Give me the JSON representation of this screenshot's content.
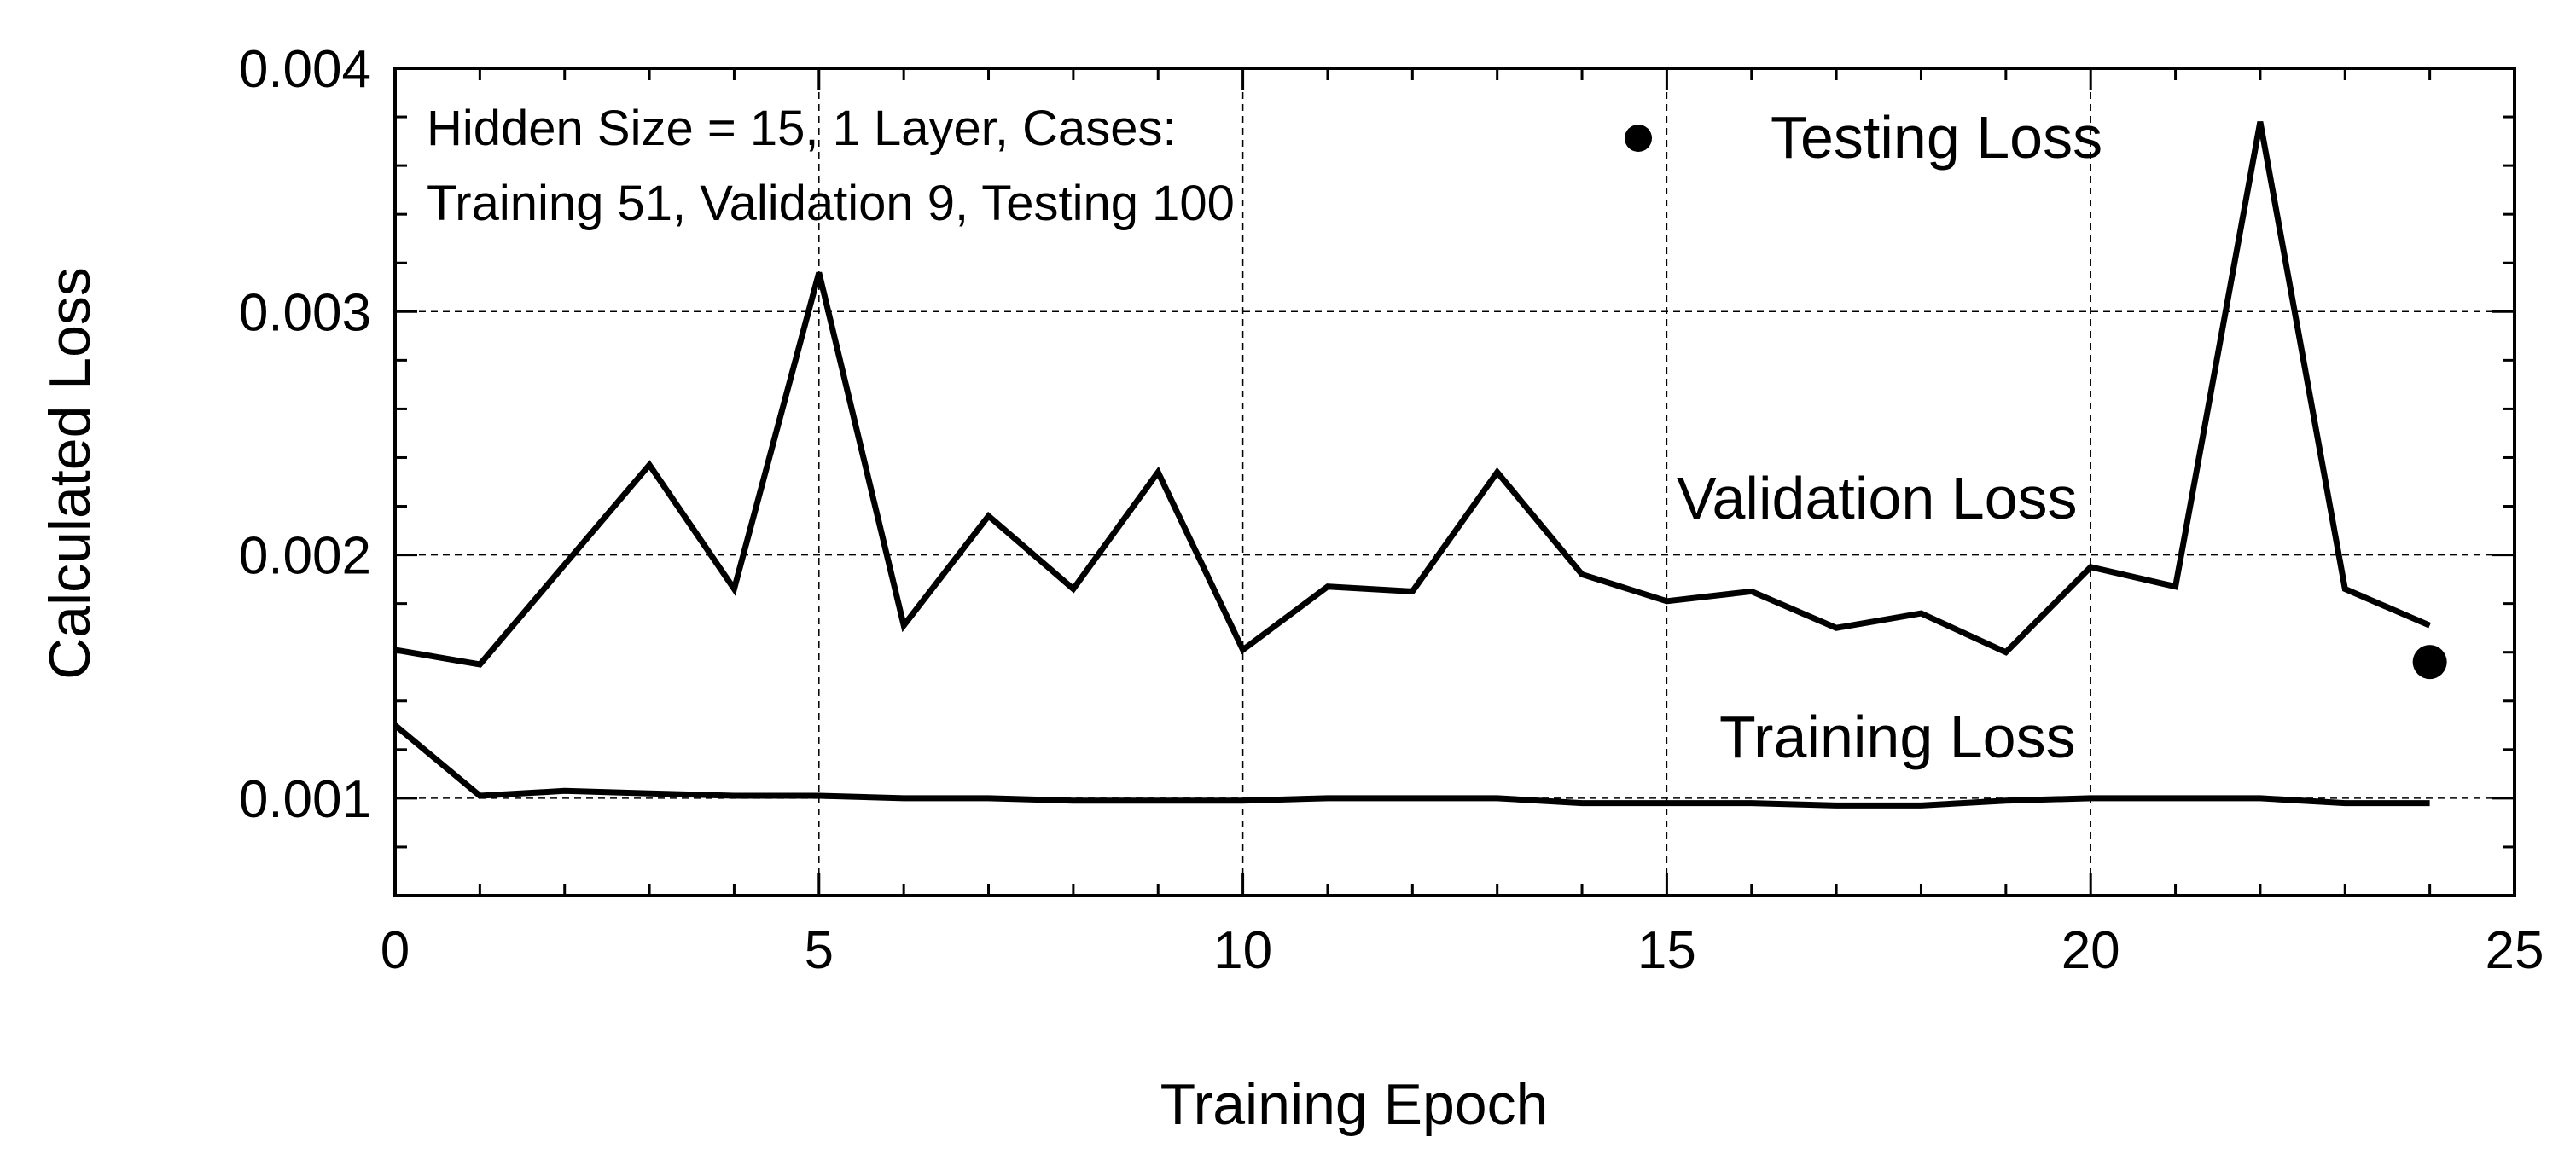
{
  "chart_data": {
    "type": "line",
    "xlabel": "Training Epoch",
    "ylabel": "Calculated Loss",
    "xlim": [
      0,
      25
    ],
    "ylim": [
      0.0006,
      0.004
    ],
    "x_ticks": [
      0,
      5,
      10,
      15,
      20,
      25
    ],
    "y_ticks": [
      0.001,
      0.002,
      0.003,
      0.004
    ],
    "x_tick_labels": [
      "0",
      "5",
      "10",
      "15",
      "20",
      "25"
    ],
    "y_tick_labels": [
      "0.001",
      "0.002",
      "0.003",
      "0.004"
    ],
    "grid": true,
    "annotation": {
      "line1": "Hidden Size = 15, 1 Layer, Cases:",
      "line2": "Training 51, Validation 9, Testing 100"
    },
    "series": [
      {
        "name": "Validation Loss",
        "style": "line",
        "x": [
          0,
          1,
          2,
          3,
          4,
          5,
          6,
          7,
          8,
          9,
          10,
          11,
          12,
          13,
          14,
          15,
          16,
          17,
          18,
          19,
          20,
          21,
          22,
          23,
          24
        ],
        "y": [
          0.00161,
          0.00155,
          0.00196,
          0.00237,
          0.00186,
          0.00316,
          0.00171,
          0.00216,
          0.00186,
          0.00234,
          0.00161,
          0.00187,
          0.00185,
          0.00234,
          0.00192,
          0.00181,
          0.00185,
          0.0017,
          0.00176,
          0.0016,
          0.00195,
          0.00187,
          0.00378,
          0.00186,
          0.00171
        ]
      },
      {
        "name": "Training Loss",
        "style": "line",
        "x": [
          0,
          1,
          2,
          3,
          4,
          5,
          6,
          7,
          8,
          9,
          10,
          11,
          12,
          13,
          14,
          15,
          16,
          17,
          18,
          19,
          20,
          21,
          22,
          23,
          24
        ],
        "y": [
          0.0013,
          0.00101,
          0.00103,
          0.00102,
          0.00101,
          0.00101,
          0.001,
          0.001,
          0.00099,
          0.00099,
          0.00099,
          0.001,
          0.001,
          0.001,
          0.00098,
          0.00098,
          0.00098,
          0.00097,
          0.00097,
          0.00099,
          0.001,
          0.001,
          0.001,
          0.00098,
          0.00098
        ]
      },
      {
        "name": "Testing Loss",
        "style": "point",
        "x": [
          24
        ],
        "y": [
          0.00156
        ]
      }
    ],
    "series_labels": {
      "testing": "Testing Loss",
      "validation": "Validation Loss",
      "training": "Training Loss"
    }
  }
}
